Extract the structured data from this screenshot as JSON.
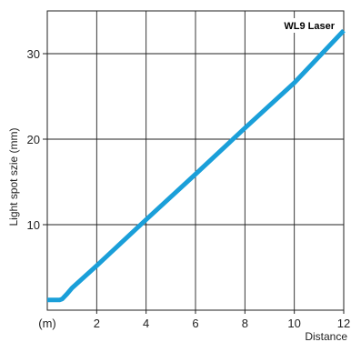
{
  "chart_data": {
    "type": "line",
    "title": "",
    "xlabel": "Distance",
    "xunit": "(m)",
    "ylabel": "Light spot szie (mm)",
    "xlim": [
      0,
      12
    ],
    "ylim": [
      0,
      35
    ],
    "grid": true,
    "x_ticks": [
      "2",
      "4",
      "6",
      "8",
      "10",
      "12"
    ],
    "y_ticks": [
      "10",
      "20",
      "30"
    ],
    "annotation": "WL9 Laser",
    "series": [
      {
        "name": "",
        "color": "#1a9fd9",
        "x": [
          0,
          0.5,
          0.6,
          0.8,
          1,
          2,
          4,
          6,
          8,
          10,
          12
        ],
        "y": [
          1.2,
          1.2,
          1.3,
          1.9,
          2.6,
          5.2,
          10.6,
          15.9,
          21.3,
          26.6,
          32.7
        ]
      }
    ]
  }
}
